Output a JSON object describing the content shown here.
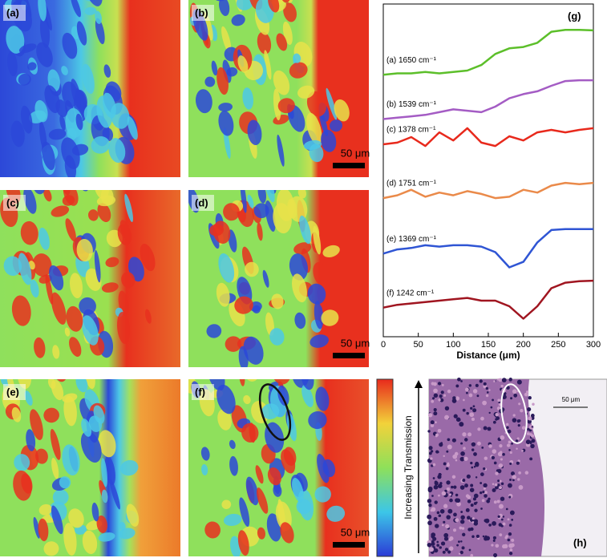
{
  "panels": [
    "(a)",
    "(b)",
    "(c)",
    "(d)",
    "(e)",
    "(f)",
    "(h)"
  ],
  "scale_bar": "50 μm",
  "colorbar_label": "Increasing Transmission",
  "chart_data": {
    "type": "line",
    "title": "(g)",
    "xlabel": "Distance (μm)",
    "x": [
      0,
      20,
      40,
      60,
      80,
      100,
      120,
      140,
      160,
      180,
      200,
      220,
      240,
      260,
      280,
      300
    ],
    "xlim": [
      0,
      300
    ],
    "xticks": [
      0,
      50,
      100,
      150,
      200,
      250,
      300
    ],
    "ylim": [
      0,
      12
    ],
    "series": [
      {
        "name": "(a) 1650 cm⁻¹",
        "color": "#5cbf2a",
        "values": [
          9.45,
          9.5,
          9.5,
          9.55,
          9.5,
          9.55,
          9.6,
          9.8,
          10.2,
          10.4,
          10.45,
          10.6,
          11.0,
          11.07,
          11.07,
          11.05
        ]
      },
      {
        "name": "(b) 1539 cm⁻¹",
        "color": "#a45cc4",
        "values": [
          7.85,
          7.9,
          7.95,
          8.0,
          8.1,
          8.2,
          8.15,
          8.1,
          8.3,
          8.6,
          8.75,
          8.85,
          9.05,
          9.22,
          9.25,
          9.25
        ]
      },
      {
        "name": "(c) 1378 cm⁻¹",
        "color": "#e8291c",
        "values": [
          6.94,
          7.0,
          7.2,
          6.88,
          7.37,
          7.08,
          7.52,
          7.0,
          6.88,
          7.23,
          7.08,
          7.37,
          7.46,
          7.37,
          7.46,
          7.52
        ]
      },
      {
        "name": "(d) 1751 cm⁻¹",
        "color": "#ea8a4a",
        "values": [
          5.0,
          5.1,
          5.3,
          5.05,
          5.2,
          5.1,
          5.25,
          5.15,
          5.0,
          5.05,
          5.3,
          5.2,
          5.45,
          5.55,
          5.5,
          5.55
        ]
      },
      {
        "name": "(e) 1369 cm⁻¹",
        "color": "#2f55d4",
        "values": [
          3.0,
          3.15,
          3.2,
          3.3,
          3.25,
          3.3,
          3.3,
          3.25,
          3.05,
          2.5,
          2.7,
          3.4,
          3.85,
          3.88,
          3.88,
          3.88
        ]
      },
      {
        "name": "(f) 1242 cm⁻¹",
        "color": "#a01520",
        "values": [
          1.05,
          1.15,
          1.2,
          1.25,
          1.3,
          1.35,
          1.4,
          1.3,
          1.3,
          1.1,
          0.65,
          1.1,
          1.75,
          1.95,
          2.0,
          2.02
        ]
      }
    ]
  }
}
